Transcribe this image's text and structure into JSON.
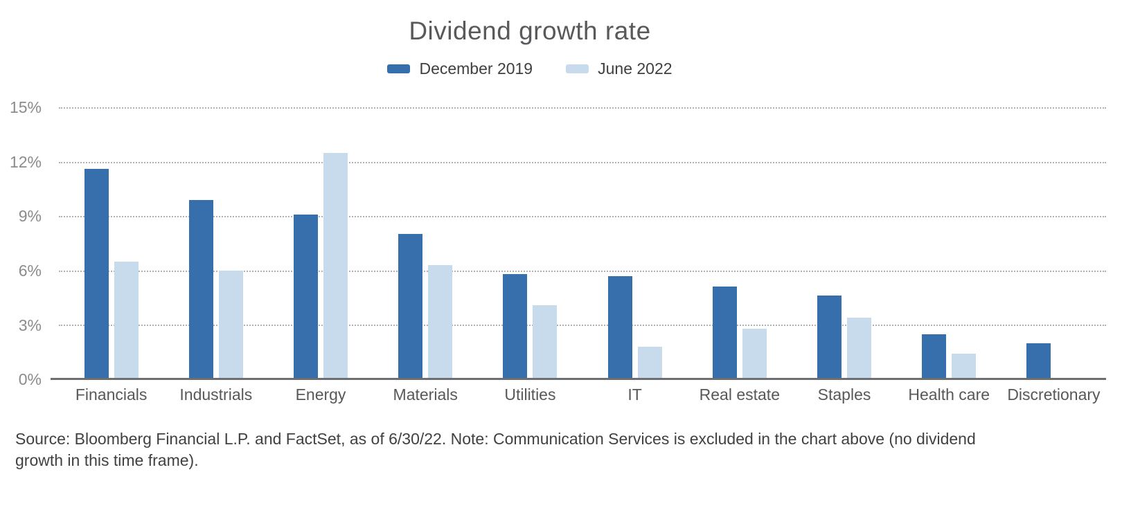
{
  "chart_data": {
    "type": "bar",
    "title": "Dividend growth rate",
    "categories": [
      "Financials",
      "Industrials",
      "Energy",
      "Materials",
      "Utilities",
      "IT",
      "Real estate",
      "Staples",
      "Health care",
      "Discretionary"
    ],
    "series": [
      {
        "name": "December 2019",
        "color": "#376fac",
        "values": [
          11.6,
          9.9,
          9.1,
          8.0,
          5.8,
          5.7,
          5.1,
          4.6,
          2.5,
          2.0
        ]
      },
      {
        "name": "June 2022",
        "color": "#c8dbec",
        "values": [
          6.5,
          6.0,
          12.5,
          6.3,
          4.1,
          1.8,
          2.8,
          3.4,
          1.4,
          null
        ]
      }
    ],
    "ylabel": "",
    "xlabel": "",
    "ylim": [
      0,
      15
    ],
    "ytick_labels_top_to_bottom": [
      "15%",
      "12%",
      "9%",
      "6%",
      "3%",
      "0%"
    ],
    "grid": "horizontal-dotted",
    "legend_position": "top-center",
    "colors": {
      "axis_line": "#6d6e71",
      "gridline": "#aeb0b3",
      "title_text": "#58595b",
      "tick_text": "#8a8b8d"
    }
  },
  "footer": {
    "source_note": "Source: Bloomberg Financial L.P. and FactSet, as of 6/30/22. Note: Communication Services is excluded in the chart above (no dividend growth in this time frame)."
  }
}
